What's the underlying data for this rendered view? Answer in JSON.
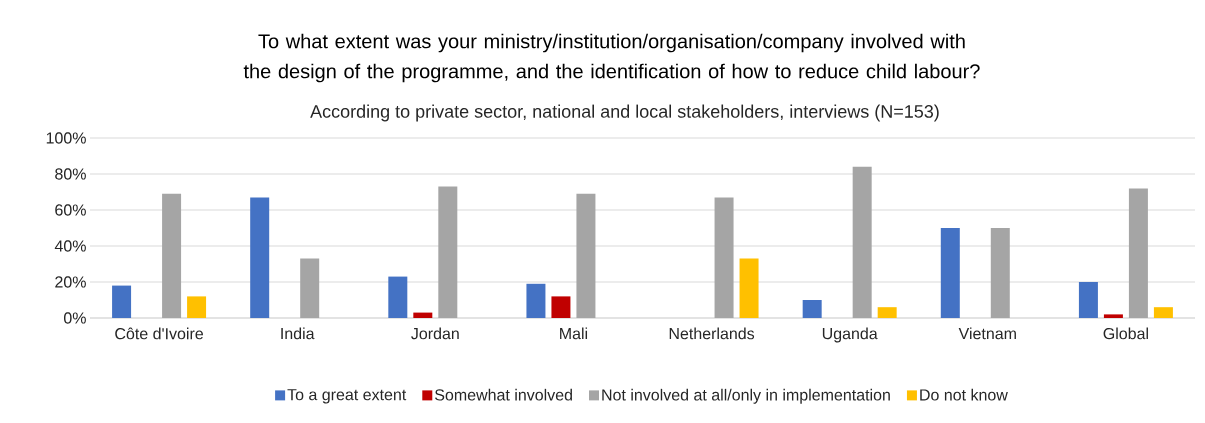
{
  "chart_data": {
    "type": "bar",
    "title": "To what extent was your ministry/institution/organisation/company involved with the design of the programme, and the identification of how to reduce child labour?",
    "subtitle": "According to private sector, national and local stakeholders, interviews (N=153)",
    "categories": [
      "Côte d'Ivoire",
      "India",
      "Jordan",
      "Mali",
      "Netherlands",
      "Uganda",
      "Vietnam",
      "Global"
    ],
    "series": [
      {
        "name": "To a great extent",
        "color": "#4472c4",
        "values": [
          18,
          67,
          23,
          19,
          null,
          10,
          50,
          20
        ]
      },
      {
        "name": "Somewhat involved",
        "color": "#c00000",
        "values": [
          null,
          null,
          3,
          12,
          null,
          null,
          null,
          2
        ]
      },
      {
        "name": "Not involved at all/only in implementation",
        "color": "#a5a5a5",
        "values": [
          69,
          33,
          73,
          69,
          67,
          84,
          50,
          72
        ]
      },
      {
        "name": "Do not know",
        "color": "#ffc000",
        "values": [
          12,
          null,
          null,
          null,
          33,
          6,
          null,
          6
        ]
      }
    ],
    "ylim": [
      0,
      100
    ],
    "yticks": [
      {
        "value": 0,
        "label": "0%"
      },
      {
        "value": 20,
        "label": "20%"
      },
      {
        "value": 40,
        "label": "40%"
      },
      {
        "value": 60,
        "label": "60%"
      },
      {
        "value": 80,
        "label": "80%"
      },
      {
        "value": 100,
        "label": "100%"
      }
    ],
    "grid": "y",
    "legend": "bottom"
  }
}
